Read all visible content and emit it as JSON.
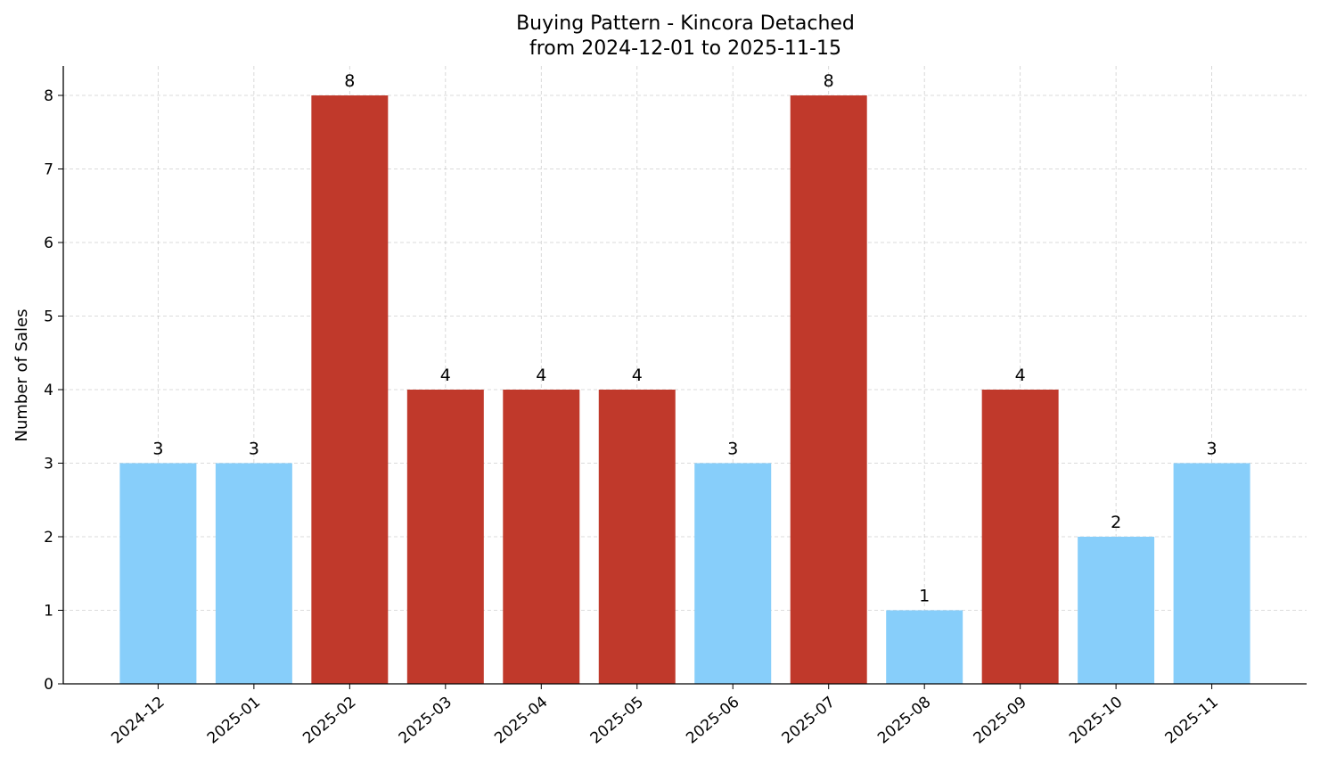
{
  "chart_data": {
    "type": "bar",
    "title": "Buying Pattern - Kincora Detached",
    "subtitle": "from 2024-12-01 to 2025-11-15",
    "xlabel": "",
    "ylabel": "Number of Sales",
    "categories": [
      "2024-12",
      "2025-01",
      "2025-02",
      "2025-03",
      "2025-04",
      "2025-05",
      "2025-06",
      "2025-07",
      "2025-08",
      "2025-09",
      "2025-10",
      "2025-11"
    ],
    "values": [
      3,
      3,
      8,
      4,
      4,
      4,
      3,
      8,
      1,
      4,
      2,
      3
    ],
    "highlight": [
      false,
      false,
      true,
      true,
      true,
      true,
      false,
      true,
      false,
      true,
      false,
      false
    ],
    "colors": {
      "normal": "#87CEFA",
      "highlight": "#C0392B"
    },
    "ylim": [
      0,
      8.4
    ],
    "yticks": [
      0,
      1,
      2,
      3,
      4,
      5,
      6,
      7,
      8
    ],
    "grid": true,
    "legend": "none"
  }
}
